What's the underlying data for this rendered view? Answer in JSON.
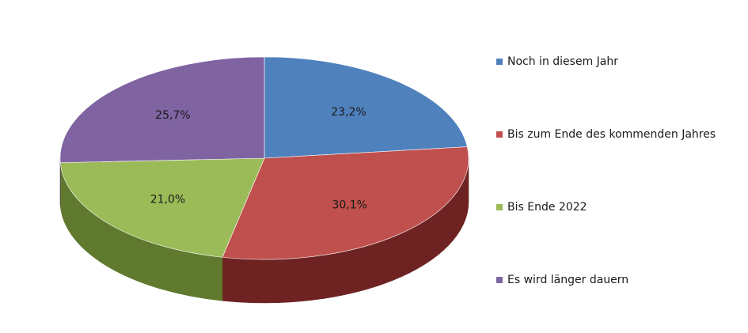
{
  "chart_data": {
    "type": "pie",
    "style": "3d",
    "legend_position": "right",
    "slices": [
      {
        "name": "Noch in diesem Jahr",
        "value": 23.2,
        "label": "23,2%",
        "color": "#4f81bd",
        "side_color": "#2c4d75"
      },
      {
        "name": "Bis zum Ende des kommenden Jahres",
        "value": 30.1,
        "label": "30,1%",
        "color": "#c0504d",
        "side_color": "#6e2322"
      },
      {
        "name": "Bis Ende 2022",
        "value": 21.0,
        "label": "21,0%",
        "color": "#9bbb59",
        "side_color": "#5f7a2e"
      },
      {
        "name": "Es wird länger dauern",
        "value": 25.7,
        "label": "25,7%",
        "color": "#8064a2",
        "side_color": "#4b3a61"
      }
    ]
  }
}
